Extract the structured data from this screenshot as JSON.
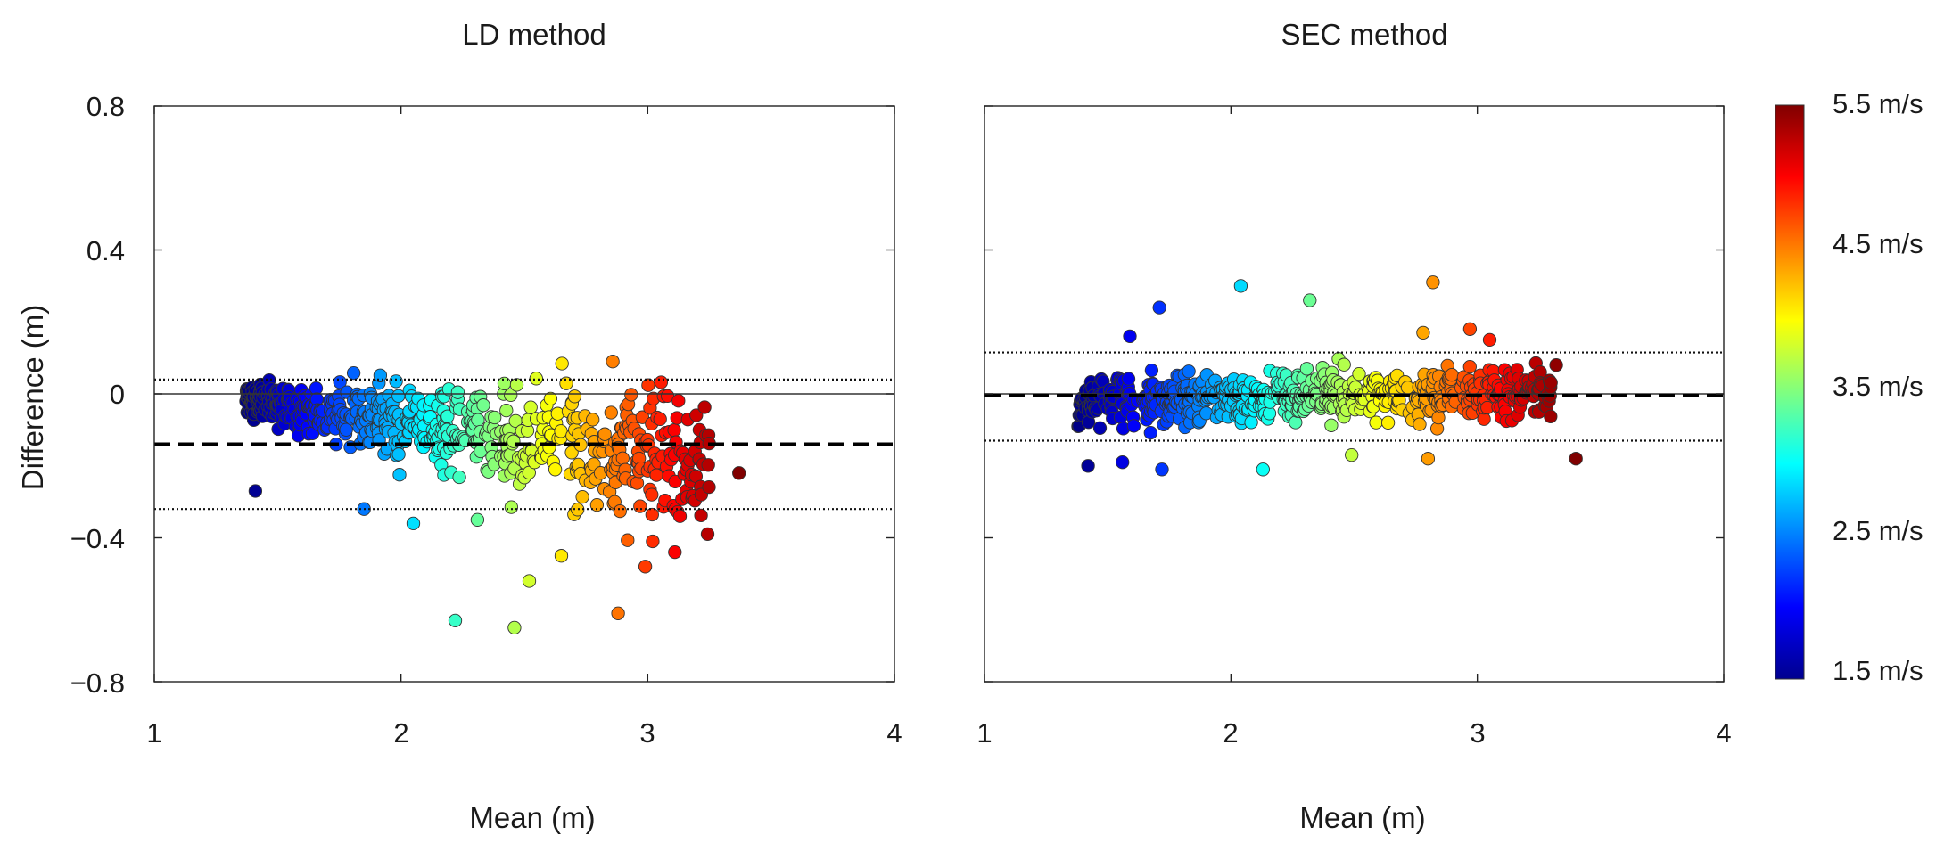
{
  "chart_data": {
    "type": "scatter",
    "description_series_encoding": "color = wind speed (m/s)",
    "colorbar": {
      "min": 1.5,
      "max": 5.5,
      "colormap": "jet",
      "tick_values": [
        5.5,
        4.5,
        3.5,
        2.5,
        1.5
      ],
      "tick_labels": [
        "5.5 m/s",
        "4.5 m/s",
        "3.5 m/s",
        "2.5 m/s",
        "1.5 m/s"
      ]
    },
    "panels": [
      {
        "title": "LD method",
        "xlabel": "Mean (m)",
        "ylabel": "Difference (m)",
        "xlim": [
          1,
          4
        ],
        "ylim": [
          -0.8,
          0.8
        ],
        "xticks": [
          1,
          2,
          3,
          4
        ],
        "xtick_labels": [
          "1",
          "2",
          "3",
          "4"
        ],
        "yticks": [
          0.8,
          0.4,
          0,
          -0.4,
          -0.8
        ],
        "ytick_labels": [
          "0.8",
          "0.4",
          "0",
          "−0.4",
          "−0.8"
        ],
        "zero_line": 0,
        "mean_bias": -0.14,
        "upper_loa": 0.04,
        "lower_loa": -0.32,
        "cloud": {
          "count": 620,
          "x_range": [
            1.37,
            3.25
          ],
          "seed": 7,
          "intercept": -0.02,
          "slope": -0.09,
          "spread_base": 0.035,
          "spread_slope": 0.06
        },
        "highlight_points": [
          [
            1.41,
            -0.27
          ],
          [
            1.91,
            0.03
          ],
          [
            2.22,
            -0.63
          ],
          [
            2.46,
            -0.65
          ],
          [
            2.88,
            -0.61
          ],
          [
            2.52,
            -0.52
          ],
          [
            3.02,
            -0.41
          ],
          [
            3.37,
            -0.22
          ],
          [
            3.18,
            -0.29
          ],
          [
            3.21,
            -0.1
          ],
          [
            3.11,
            -0.44
          ],
          [
            2.31,
            -0.35
          ],
          [
            1.85,
            -0.32
          ],
          [
            2.05,
            -0.36
          ],
          [
            2.65,
            -0.45
          ],
          [
            2.99,
            -0.48
          ],
          [
            3.05,
            -0.07
          ]
        ]
      },
      {
        "title": "SEC method",
        "xlabel": "Mean (m)",
        "ylabel": "",
        "xlim": [
          1,
          4
        ],
        "ylim": [
          -0.8,
          0.8
        ],
        "xticks": [
          1,
          2,
          3,
          4
        ],
        "xtick_labels": [
          "1",
          "2",
          "3",
          "4"
        ],
        "yticks": [
          0.8,
          0.4,
          0,
          -0.4,
          -0.8
        ],
        "ytick_labels": [
          "",
          "",
          "",
          "",
          ""
        ],
        "zero_line": 0,
        "mean_bias": -0.005,
        "upper_loa": 0.115,
        "lower_loa": -0.13,
        "cloud": {
          "count": 620,
          "x_range": [
            1.38,
            3.3
          ],
          "seed": 11,
          "intercept": -0.02,
          "slope": 0.012,
          "spread_base": 0.05,
          "spread_slope": 0.0
        },
        "highlight_points": [
          [
            1.71,
            0.24
          ],
          [
            2.04,
            0.3
          ],
          [
            2.82,
            0.31
          ],
          [
            2.32,
            0.26
          ],
          [
            1.42,
            -0.2
          ],
          [
            1.72,
            -0.21
          ],
          [
            2.13,
            -0.21
          ],
          [
            2.8,
            -0.18
          ],
          [
            3.4,
            -0.18
          ],
          [
            2.49,
            -0.17
          ],
          [
            3.32,
            0.08
          ],
          [
            2.97,
            0.18
          ],
          [
            3.05,
            0.15
          ],
          [
            1.59,
            0.16
          ],
          [
            3.25,
            -0.05
          ],
          [
            2.78,
            0.17
          ],
          [
            1.56,
            -0.19
          ]
        ]
      }
    ]
  }
}
